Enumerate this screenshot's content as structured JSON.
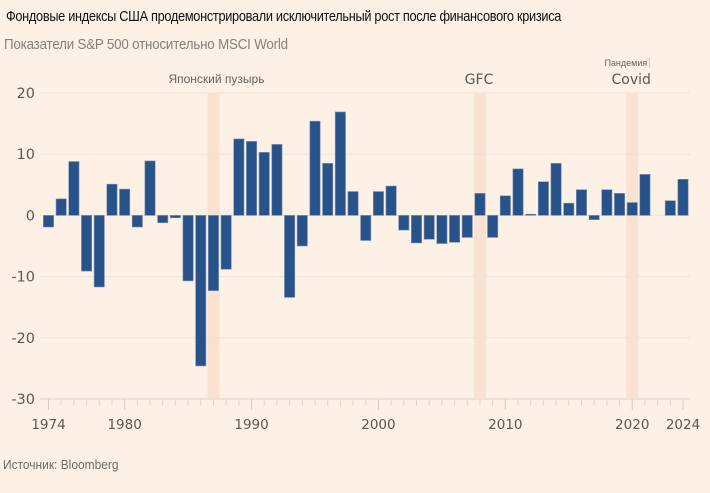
{
  "header": {
    "title": "Фондовые индексы США продемонстрировали исключительный рост после финансового кризиса",
    "subtitle": "Показатели S&P 500 относительно MSCI World"
  },
  "footer": {
    "source": "Источник: Bloomberg"
  },
  "chart_data": {
    "type": "bar",
    "title": "Фондовые индексы США продемонстрировали исключительный рост после финансового кризиса",
    "subtitle": "Показатели S&P 500 относительно MSCI World",
    "xlabel": "",
    "ylabel": "",
    "ylim": [
      -30,
      20
    ],
    "yticks": [
      20,
      10,
      0,
      -10,
      -20,
      -30
    ],
    "xticks": [
      1974,
      1980,
      1990,
      2000,
      2010,
      2020,
      2024
    ],
    "grid": true,
    "bar_color": "#27528a",
    "highlight_color": "#f9e2d2",
    "categories": [
      1974,
      1975,
      1976,
      1977,
      1978,
      1979,
      1980,
      1981,
      1982,
      1983,
      1984,
      1985,
      1986,
      1987,
      1988,
      1989,
      1990,
      1991,
      1992,
      1993,
      1994,
      1995,
      1996,
      1997,
      1998,
      1999,
      2000,
      2001,
      2002,
      2003,
      2004,
      2005,
      2006,
      2007,
      2008,
      2009,
      2010,
      2011,
      2012,
      2013,
      2014,
      2015,
      2016,
      2017,
      2018,
      2019,
      2020,
      2021,
      2022,
      2023,
      2024
    ],
    "values": [
      -1.9,
      2.7,
      8.8,
      -9.1,
      -11.7,
      5.1,
      4.3,
      -1.9,
      8.9,
      -1.2,
      -0.4,
      -10.7,
      -24.6,
      -12.3,
      -8.8,
      12.5,
      12.1,
      10.3,
      11.6,
      -13.4,
      -5.0,
      15.4,
      8.5,
      16.9,
      3.9,
      -4.1,
      3.9,
      4.8,
      -2.4,
      -4.5,
      -3.9,
      -4.6,
      -4.4,
      -3.6,
      3.6,
      -3.6,
      3.2,
      7.6,
      0.2,
      5.5,
      8.5,
      2.0,
      4.2,
      -0.7,
      4.2,
      3.6,
      2.1,
      6.7,
      0.0,
      2.4,
      5.9
    ],
    "annotations": [
      {
        "label": "Японский пузырь",
        "year": 1987,
        "style": "small"
      },
      {
        "label": "GFC",
        "year": 2008,
        "style": "large"
      },
      {
        "label": "Covid",
        "year": 2020,
        "style": "large",
        "sublabel": "Пандемия"
      }
    ]
  }
}
